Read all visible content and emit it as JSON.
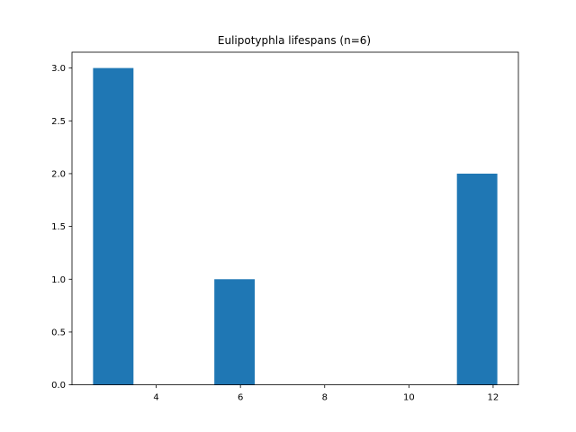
{
  "chart_data": {
    "type": "bar",
    "title": "Eulipotyphla lifespans (n=6)",
    "xlabel": "",
    "ylabel": "",
    "xlim": [
      2.0,
      12.6
    ],
    "ylim": [
      0,
      3.15
    ],
    "grid": false,
    "legend": "none",
    "bar_color": "#1f77b4",
    "bins": [
      {
        "x0": 2.5,
        "x1": 3.46,
        "value": 3
      },
      {
        "x0": 3.46,
        "x1": 4.42,
        "value": 0
      },
      {
        "x0": 4.42,
        "x1": 5.38,
        "value": 0
      },
      {
        "x0": 5.38,
        "x1": 6.34,
        "value": 1
      },
      {
        "x0": 6.34,
        "x1": 7.3,
        "value": 0
      },
      {
        "x0": 7.3,
        "x1": 8.26,
        "value": 0
      },
      {
        "x0": 8.26,
        "x1": 9.22,
        "value": 0
      },
      {
        "x0": 9.22,
        "x1": 10.18,
        "value": 0
      },
      {
        "x0": 10.18,
        "x1": 11.14,
        "value": 0
      },
      {
        "x0": 11.14,
        "x1": 12.1,
        "value": 2
      }
    ],
    "x_ticks": [
      {
        "value": 4,
        "label": "4"
      },
      {
        "value": 6,
        "label": "6"
      },
      {
        "value": 8,
        "label": "8"
      },
      {
        "value": 10,
        "label": "10"
      },
      {
        "value": 12,
        "label": "12"
      }
    ],
    "y_ticks": [
      {
        "value": 0,
        "label": "0.0"
      },
      {
        "value": 0.5,
        "label": "0.5"
      },
      {
        "value": 1.0,
        "label": "1.0"
      },
      {
        "value": 1.5,
        "label": "1.5"
      },
      {
        "value": 2.0,
        "label": "2.0"
      },
      {
        "value": 2.5,
        "label": "2.5"
      },
      {
        "value": 3.0,
        "label": "3.0"
      }
    ]
  }
}
